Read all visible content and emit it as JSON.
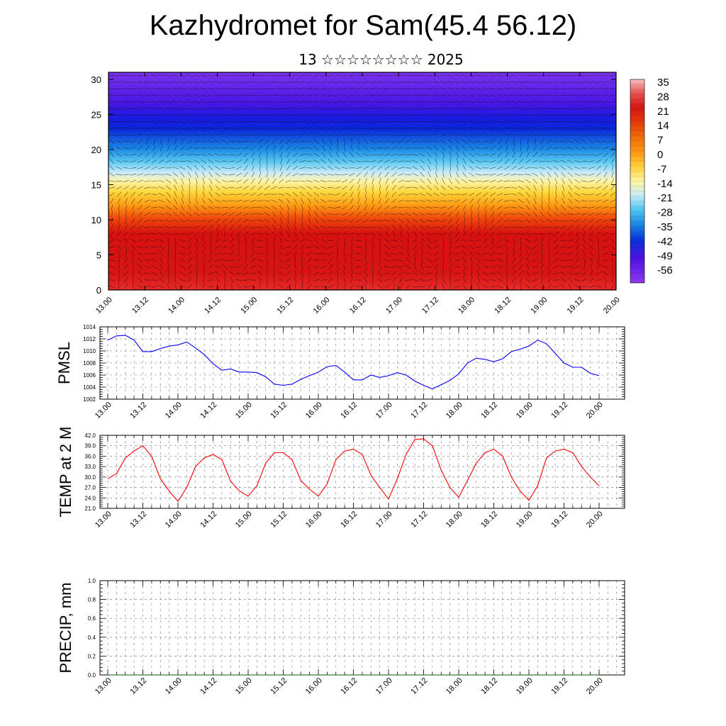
{
  "title": "Kazhydromet for Sam(45.4 56.12)",
  "subtitle": "13 ☆☆☆☆☆☆☆☆ 2025",
  "chart_data": [
    {
      "type": "heatmap",
      "name": "cross-section",
      "x_ticks": [
        "13.00",
        "13.12",
        "14.00",
        "14.12",
        "15.00",
        "15.12",
        "16.00",
        "16.12",
        "17.00",
        "17.12",
        "18.00",
        "18.12",
        "19.00",
        "19.12",
        "20.00"
      ],
      "y_ticks": [
        0,
        5,
        10,
        15,
        20,
        25,
        30
      ],
      "ylim": [
        0,
        31
      ],
      "colorbar": {
        "labels": [
          "35",
          "28",
          "21",
          "14",
          "7",
          "0",
          "-7",
          "-14",
          "-21",
          "-28",
          "-35",
          "-42",
          "-49",
          "-56"
        ],
        "colors": [
          "#f4a0a0",
          "#e03232",
          "#d41414",
          "#e03c0a",
          "#f06a0a",
          "#ff9a14",
          "#ffd23c",
          "#fff5a0",
          "#c8ecf8",
          "#50c8f0",
          "#1a8ae6",
          "#0a32dc",
          "#5010e6",
          "#8c3cf0"
        ]
      },
      "vector_overlay": true
    },
    {
      "type": "line",
      "ylabel": "PMSL",
      "ylim": [
        1002,
        1014
      ],
      "y_ticks": [
        "1002",
        "1004",
        "1006",
        "1008",
        "1010",
        "1012",
        "1014"
      ],
      "x_ticks": [
        "13.00",
        "13.12",
        "14.00",
        "14.12",
        "15.00",
        "15.12",
        "16.00",
        "16.12",
        "17.00",
        "17.12",
        "18.00",
        "18.12",
        "19.00",
        "19.12",
        "20.00"
      ],
      "series": [
        {
          "color": "#0000ff",
          "values": [
            1011.8,
            1012.5,
            1012.6,
            1011.8,
            1009.9,
            1009.9,
            1010.4,
            1010.8,
            1011.0,
            1011.5,
            1010.5,
            1009.4,
            1007.9,
            1006.8,
            1007.0,
            1006.5,
            1006.5,
            1006.4,
            1005.7,
            1004.5,
            1004.3,
            1004.5,
            1005.3,
            1005.9,
            1006.5,
            1007.4,
            1007.6,
            1006.5,
            1005.2,
            1005.2,
            1006.0,
            1005.6,
            1005.9,
            1006.4,
            1006.0,
            1005.0,
            1004.3,
            1003.7,
            1004.4,
            1005.1,
            1006.2,
            1008.0,
            1008.8,
            1008.6,
            1008.2,
            1008.7,
            1009.9,
            1010.3,
            1010.8,
            1011.8,
            1011.2,
            1009.6,
            1008.0,
            1007.3,
            1007.3,
            1006.3,
            1005.9
          ]
        }
      ]
    },
    {
      "type": "line",
      "ylabel": "TEMP at 2 M",
      "ylim": [
        21,
        42
      ],
      "y_ticks": [
        "21.0",
        "24.0",
        "27.0",
        "30.0",
        "33.0",
        "36.0",
        "39.0",
        "42.0"
      ],
      "x_ticks": [
        "13.00",
        "13.12",
        "14.00",
        "14.12",
        "15.00",
        "15.12",
        "16.00",
        "16.12",
        "17.00",
        "17.12",
        "18.00",
        "18.12",
        "19.00",
        "19.12",
        "20.00"
      ],
      "series": [
        {
          "color": "#ff0000",
          "values": [
            29.5,
            31.0,
            35.5,
            37.5,
            39.0,
            36.0,
            29.5,
            26.0,
            23.0,
            27.0,
            33.0,
            35.5,
            36.5,
            35.0,
            28.8,
            26.0,
            24.5,
            27.5,
            34.0,
            37.0,
            37.0,
            35.0,
            29.0,
            26.5,
            24.5,
            28.0,
            35.0,
            37.5,
            38.0,
            36.5,
            30.5,
            27.0,
            23.7,
            29.5,
            36.5,
            40.8,
            41.0,
            39.0,
            32.0,
            27.0,
            24.2,
            29.0,
            34.0,
            37.0,
            38.0,
            36.0,
            30.0,
            26.0,
            23.3,
            27.5,
            35.5,
            37.5,
            38.0,
            37.0,
            33.0,
            30.0,
            27.5
          ]
        }
      ]
    },
    {
      "type": "line",
      "ylabel": "PRECIP, mm",
      "ylim": [
        0,
        1
      ],
      "y_ticks": [
        "0.0",
        "0.2",
        "0.4",
        "0.6",
        "0.8",
        "1.0"
      ],
      "x_ticks": [
        "13.00",
        "13.12",
        "14.00",
        "14.12",
        "15.00",
        "15.12",
        "16.00",
        "16.12",
        "17.00",
        "17.12",
        "18.00",
        "18.12",
        "19.00",
        "19.12",
        "20.00"
      ],
      "series": [
        {
          "color": "#0a5a0a",
          "values": [
            0,
            0,
            0,
            0,
            0,
            0,
            0,
            0,
            0,
            0,
            0,
            0,
            0,
            0,
            0,
            0,
            0,
            0,
            0,
            0,
            0,
            0,
            0,
            0,
            0,
            0,
            0,
            0,
            0,
            0,
            0,
            0,
            0,
            0,
            0,
            0,
            0,
            0,
            0,
            0,
            0,
            0,
            0,
            0,
            0,
            0,
            0,
            0,
            0,
            0,
            0,
            0,
            0,
            0,
            0,
            0,
            0
          ]
        }
      ]
    }
  ]
}
